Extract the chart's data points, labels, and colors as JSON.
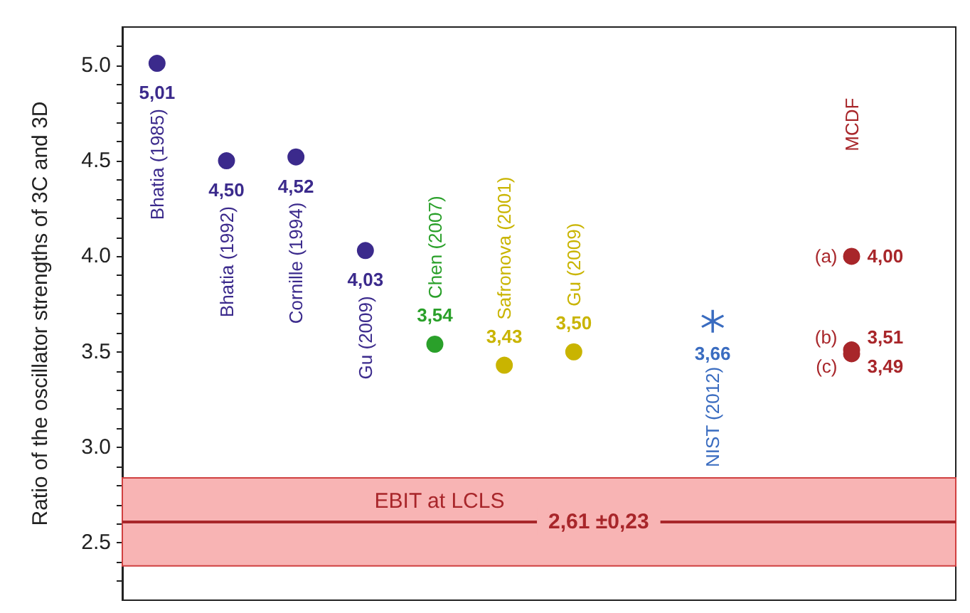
{
  "chart_data": {
    "type": "scatter",
    "ylabel": "Ratio of the oscillator strengths of 3C and 3D",
    "categories": [
      null,
      null,
      null,
      null,
      null,
      null,
      null,
      null,
      null,
      null,
      null,
      null
    ],
    "ylim": [
      2.2,
      5.2
    ],
    "yticks": [
      {
        "value": 2.3,
        "label": null
      },
      {
        "value": 2.4,
        "label": null
      },
      2.5,
      {
        "value": 2.6,
        "label": null
      },
      {
        "value": 2.7,
        "label": null
      },
      {
        "value": 2.8,
        "label": null
      },
      {
        "value": 2.9,
        "label": null
      },
      {
        "value": 3,
        "label": "3.0"
      },
      {
        "value": 3.1,
        "label": null
      },
      {
        "value": 3.2,
        "label": null
      },
      {
        "value": 3.3,
        "label": null
      },
      {
        "value": 3.4,
        "label": null
      },
      3.5,
      {
        "value": 3.6,
        "label": null
      },
      {
        "value": 3.7,
        "label": null
      },
      {
        "value": 3.8,
        "label": null
      },
      {
        "value": 3.9,
        "label": null
      },
      {
        "value": 4,
        "label": "4.0"
      },
      {
        "value": 4.1,
        "label": null
      },
      {
        "value": 4.2,
        "label": null
      },
      {
        "value": 4.3,
        "label": null
      },
      {
        "value": 4.4,
        "label": null
      },
      4.5,
      {
        "value": 4.6,
        "label": null
      },
      {
        "value": 4.7,
        "label": null
      },
      {
        "value": 4.8,
        "label": null
      },
      {
        "value": 4.9,
        "label": null
      },
      {
        "value": 5,
        "label": "5.0"
      },
      {
        "value": 5.1,
        "label": null
      }
    ],
    "tick_labels": "y",
    "grid": false,
    "marker": "circle",
    "series": [
      {
        "name": "Bhatia (1985)",
        "color": "#3b2a8c",
        "values": [
          5.01,
          null,
          null,
          null,
          null,
          null,
          null,
          null,
          null,
          null,
          null,
          null
        ],
        "value_labels": [
          "5,01",
          null,
          null,
          null,
          null,
          null,
          null,
          null,
          null,
          null,
          null,
          null
        ]
      },
      {
        "name": "Bhatia (1992)",
        "color": "#3b2a8c",
        "values": [
          null,
          4.5,
          null,
          null,
          null,
          null,
          null,
          null,
          null,
          null,
          null,
          null
        ],
        "value_labels": [
          null,
          "4,50",
          null,
          null,
          null,
          null,
          null,
          null,
          null,
          null,
          null,
          null
        ]
      },
      {
        "name": "Cornille (1994)",
        "color": "#3b2a8c",
        "values": [
          null,
          null,
          4.52,
          null,
          null,
          null,
          null,
          null,
          null,
          null,
          null,
          null
        ],
        "value_labels": [
          null,
          null,
          "4,52",
          null,
          null,
          null,
          null,
          null,
          null,
          null,
          null,
          null
        ]
      },
      {
        "name": "Gu (2009)",
        "color": "#3b2a8c",
        "values": [
          null,
          null,
          null,
          4.03,
          null,
          null,
          null,
          null,
          null,
          null,
          null,
          null
        ],
        "value_labels": [
          null,
          null,
          null,
          "4,03",
          null,
          null,
          null,
          null,
          null,
          null,
          null,
          null
        ]
      },
      {
        "name": "Chen (2007)",
        "color": "#2aa02a",
        "values": [
          null,
          null,
          null,
          null,
          3.54,
          null,
          null,
          null,
          null,
          null,
          null,
          null
        ],
        "value_labels": [
          null,
          null,
          null,
          null,
          "3,54",
          null,
          null,
          null,
          null,
          null,
          null,
          null
        ]
      },
      {
        "name": "Safronova (2001)",
        "color": "#c9b400",
        "values": [
          null,
          null,
          null,
          null,
          null,
          3.43,
          null,
          null,
          null,
          null,
          null,
          null
        ],
        "value_labels": [
          null,
          null,
          null,
          null,
          null,
          "3,43",
          null,
          null,
          null,
          null,
          null,
          null
        ]
      },
      {
        "name": "Gu (2009)",
        "color": "#c9b400",
        "values": [
          null,
          null,
          null,
          null,
          null,
          null,
          3.5,
          null,
          null,
          null,
          null,
          null
        ],
        "value_labels": [
          null,
          null,
          null,
          null,
          null,
          null,
          "3,50",
          null,
          null,
          null,
          null,
          null
        ]
      },
      {
        "name": "NIST (2012)",
        "color": "#3a6cc0",
        "marker": "star",
        "values": [
          null,
          null,
          null,
          null,
          null,
          null,
          null,
          null,
          3.66,
          null,
          null,
          null
        ],
        "value_labels": [
          null,
          null,
          null,
          null,
          null,
          null,
          null,
          null,
          "3,66",
          null,
          null,
          null
        ]
      },
      {
        "name": "(a)",
        "color": "#a8262a",
        "values": [
          null,
          null,
          null,
          null,
          null,
          null,
          null,
          null,
          null,
          null,
          4.0,
          null
        ],
        "value_labels": [
          null,
          null,
          null,
          null,
          null,
          null,
          null,
          null,
          null,
          null,
          "4,00",
          null
        ]
      },
      {
        "name": "(b)",
        "color": "#a8262a",
        "values": [
          null,
          null,
          null,
          null,
          null,
          null,
          null,
          null,
          null,
          null,
          3.51,
          null
        ],
        "value_labels": [
          null,
          null,
          null,
          null,
          null,
          null,
          null,
          null,
          null,
          null,
          "3,51",
          null
        ]
      },
      {
        "name": "(c)",
        "color": "#a8262a",
        "values": [
          null,
          null,
          null,
          null,
          null,
          null,
          null,
          null,
          null,
          null,
          3.49,
          null
        ],
        "value_labels": [
          null,
          null,
          null,
          null,
          null,
          null,
          null,
          null,
          null,
          null,
          "3,49",
          null
        ]
      }
    ],
    "bands": [
      {
        "axis": "y",
        "from": 2.38,
        "to": 2.84,
        "color": "#f8b4b4"
      }
    ],
    "ref_lines": [
      {
        "axis": "y",
        "value": 2.61,
        "label": "EBIT at LCLS",
        "color": "#a8262a",
        "line_style": "solid"
      }
    ],
    "annotations": [
      "MCDF",
      "2,61 ±0,23"
    ]
  }
}
